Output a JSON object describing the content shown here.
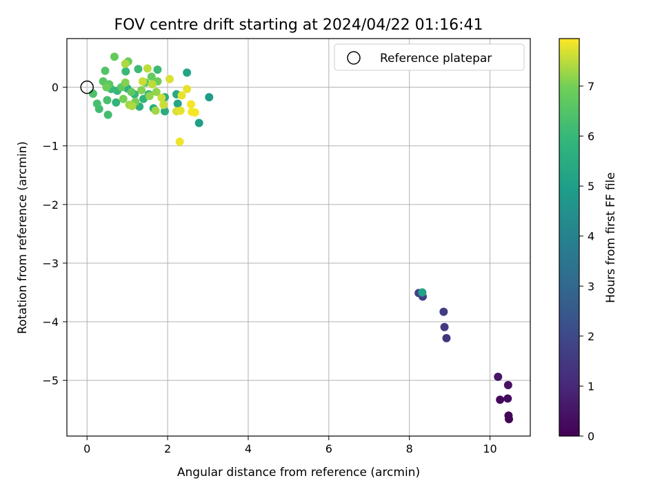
{
  "chart_data": {
    "type": "scatter",
    "title": "FOV centre drift starting at 2024/04/22 01:16:41",
    "xlabel": "Angular distance from reference (arcmin)",
    "ylabel": "Rotation from reference (arcmin)",
    "xlim": [
      -0.5,
      11.0
    ],
    "ylim": [
      -5.95,
      0.83
    ],
    "xticks": [
      0,
      2,
      4,
      6,
      8,
      10
    ],
    "yticks": [
      0,
      -1,
      -2,
      -3,
      -4,
      -5
    ],
    "xtick_labels": [
      "0",
      "2",
      "4",
      "6",
      "8",
      "10"
    ],
    "ytick_labels": [
      "0",
      "−1",
      "−2",
      "−3",
      "−4",
      "−5"
    ],
    "grid": true,
    "legend": {
      "placement": "top-right",
      "entries": [
        "Reference platepar"
      ]
    },
    "reference_point": {
      "x": 0,
      "y": 0
    },
    "colorbar": {
      "label": "Hours from first FF file",
      "colormap": "viridis",
      "range": [
        0,
        7.95
      ],
      "ticks": [
        0,
        1,
        2,
        3,
        4,
        5,
        6,
        7
      ],
      "tick_labels": [
        "0",
        "1",
        "2",
        "3",
        "4",
        "5",
        "6",
        "7"
      ]
    },
    "points": [
      {
        "x": 10.47,
        "y": -5.66,
        "t": 0.05
      },
      {
        "x": 10.46,
        "y": -5.6,
        "t": 0.1
      },
      {
        "x": 10.25,
        "y": -5.33,
        "t": 0.2
      },
      {
        "x": 10.44,
        "y": -5.31,
        "t": 0.3
      },
      {
        "x": 10.45,
        "y": -5.08,
        "t": 0.4
      },
      {
        "x": 10.2,
        "y": -4.94,
        "t": 0.5
      },
      {
        "x": 8.92,
        "y": -4.28,
        "t": 1.4
      },
      {
        "x": 8.87,
        "y": -4.09,
        "t": 1.5
      },
      {
        "x": 8.85,
        "y": -3.83,
        "t": 1.6
      },
      {
        "x": 8.33,
        "y": -3.57,
        "t": 1.7
      },
      {
        "x": 8.23,
        "y": -3.51,
        "t": 1.8
      },
      {
        "x": 8.32,
        "y": -3.5,
        "t": 5.1
      },
      {
        "x": 3.03,
        "y": -0.17,
        "t": 4.9
      },
      {
        "x": 2.78,
        "y": -0.61,
        "t": 5.0
      },
      {
        "x": 2.48,
        "y": 0.25,
        "t": 5.2
      },
      {
        "x": 2.25,
        "y": -0.28,
        "t": 5.3
      },
      {
        "x": 2.22,
        "y": -0.12,
        "t": 5.4
      },
      {
        "x": 1.93,
        "y": -0.41,
        "t": 5.5
      },
      {
        "x": 1.93,
        "y": -0.17,
        "t": 5.5
      },
      {
        "x": 1.65,
        "y": -0.36,
        "t": 5.6
      },
      {
        "x": 1.53,
        "y": -0.12,
        "t": 5.7
      },
      {
        "x": 1.3,
        "y": -0.33,
        "t": 5.6
      },
      {
        "x": 1.4,
        "y": -0.2,
        "t": 5.8
      },
      {
        "x": 1.18,
        "y": -0.12,
        "t": 5.9
      },
      {
        "x": 1.0,
        "y": -0.02,
        "t": 5.7
      },
      {
        "x": 0.72,
        "y": -0.26,
        "t": 5.8
      },
      {
        "x": 0.75,
        "y": -0.06,
        "t": 5.9
      },
      {
        "x": 0.6,
        "y": -0.03,
        "t": 6.0
      },
      {
        "x": 0.96,
        "y": 0.27,
        "t": 6.0
      },
      {
        "x": 1.27,
        "y": 0.31,
        "t": 6.1
      },
      {
        "x": 1.75,
        "y": 0.3,
        "t": 6.1
      },
      {
        "x": 0.52,
        "y": -0.47,
        "t": 6.2
      },
      {
        "x": 0.3,
        "y": -0.37,
        "t": 6.2
      },
      {
        "x": 0.25,
        "y": -0.28,
        "t": 6.3
      },
      {
        "x": 0.15,
        "y": -0.11,
        "t": 6.4
      },
      {
        "x": 0.5,
        "y": -0.22,
        "t": 6.3
      },
      {
        "x": 0.45,
        "y": 0.28,
        "t": 6.5
      },
      {
        "x": 0.68,
        "y": 0.52,
        "t": 6.8
      },
      {
        "x": 1.02,
        "y": 0.44,
        "t": 6.9
      },
      {
        "x": 0.4,
        "y": 0.1,
        "t": 6.6
      },
      {
        "x": 0.55,
        "y": 0.05,
        "t": 6.6
      },
      {
        "x": 0.85,
        "y": 0.0,
        "t": 6.7
      },
      {
        "x": 1.1,
        "y": -0.08,
        "t": 6.7
      },
      {
        "x": 1.45,
        "y": 0.08,
        "t": 6.8
      },
      {
        "x": 1.6,
        "y": 0.18,
        "t": 6.8
      },
      {
        "x": 1.75,
        "y": 0.1,
        "t": 6.9
      },
      {
        "x": 0.9,
        "y": -0.2,
        "t": 7.0
      },
      {
        "x": 1.2,
        "y": -0.25,
        "t": 7.0
      },
      {
        "x": 0.95,
        "y": 0.08,
        "t": 7.1
      },
      {
        "x": 1.35,
        "y": -0.05,
        "t": 7.1
      },
      {
        "x": 0.48,
        "y": 0.0,
        "t": 6.9
      },
      {
        "x": 1.72,
        "y": -0.08,
        "t": 7.2
      },
      {
        "x": 1.55,
        "y": -0.15,
        "t": 7.2
      },
      {
        "x": 1.05,
        "y": -0.3,
        "t": 7.3
      },
      {
        "x": 1.7,
        "y": -0.4,
        "t": 7.3
      },
      {
        "x": 0.95,
        "y": 0.4,
        "t": 7.4
      },
      {
        "x": 1.5,
        "y": 0.32,
        "t": 7.5
      },
      {
        "x": 1.62,
        "y": 0.05,
        "t": 7.5
      },
      {
        "x": 1.85,
        "y": -0.18,
        "t": 7.6
      },
      {
        "x": 1.9,
        "y": -0.3,
        "t": 7.6
      },
      {
        "x": 2.05,
        "y": 0.14,
        "t": 7.7
      },
      {
        "x": 2.22,
        "y": -0.41,
        "t": 7.7
      },
      {
        "x": 2.32,
        "y": -0.4,
        "t": 7.8
      },
      {
        "x": 2.35,
        "y": -0.14,
        "t": 7.8
      },
      {
        "x": 2.48,
        "y": -0.03,
        "t": 7.8
      },
      {
        "x": 2.58,
        "y": -0.29,
        "t": 7.9
      },
      {
        "x": 2.6,
        "y": -0.42,
        "t": 7.9
      },
      {
        "x": 2.68,
        "y": -0.43,
        "t": 7.9
      },
      {
        "x": 2.3,
        "y": -0.93,
        "t": 7.85
      },
      {
        "x": 1.38,
        "y": 0.1,
        "t": 7.6
      },
      {
        "x": 1.12,
        "y": -0.32,
        "t": 7.4
      }
    ]
  }
}
